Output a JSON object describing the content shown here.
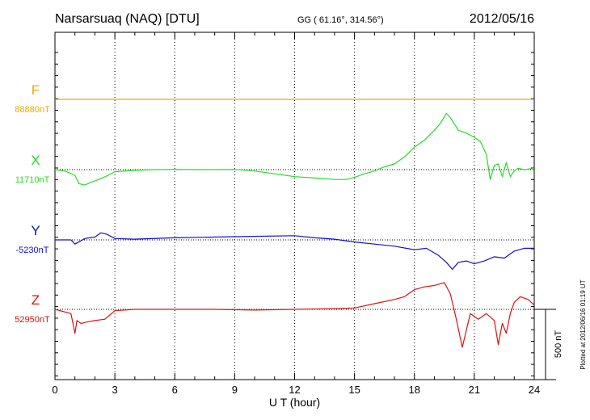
{
  "chart_data": {
    "type": "line",
    "title": "Narsarsuaq (NAQ)  [DTU]",
    "coords": "GG ( 61.16°, 314.56°)",
    "date": "2012/05/16",
    "xlabel": "U T (hour)",
    "xlim": [
      0,
      24
    ],
    "xticks": [
      "0",
      "3",
      "6",
      "9",
      "12",
      "15",
      "18",
      "21",
      "24"
    ],
    "scale_label": "500 nT",
    "plotted_note": "Plotted at 2012/06/16 01:19 UT",
    "grid": true,
    "series": [
      {
        "name": "F",
        "baseline_label": "88880nT",
        "color": "#f0a800",
        "x": [
          0,
          24
        ],
        "y": [
          88880,
          88880
        ]
      },
      {
        "name": "X",
        "baseline_label": "11710nT",
        "color": "#22dd22",
        "x": [
          0,
          0.5,
          1.0,
          1.2,
          1.5,
          1.8,
          2.2,
          2.6,
          3.0,
          4,
          5,
          6,
          7,
          8,
          9,
          10,
          11,
          12,
          13,
          14,
          14.6,
          15,
          15.5,
          16,
          16.5,
          17,
          17.5,
          18,
          18.5,
          19,
          19.3,
          19.6,
          19.8,
          20.2,
          20.6,
          21,
          21.3,
          21.6,
          21.8,
          22.0,
          22.2,
          22.4,
          22.6,
          22.8,
          23.0,
          23.2,
          23.5,
          24
        ],
        "y": [
          11710,
          11700,
          11670,
          11610,
          11600,
          11620,
          11640,
          11665,
          11695,
          11705,
          11710,
          11712,
          11710,
          11710,
          11712,
          11700,
          11680,
          11660,
          11650,
          11640,
          11640,
          11655,
          11680,
          11700,
          11730,
          11750,
          11800,
          11870,
          11920,
          11990,
          12040,
          12110,
          12080,
          11990,
          11970,
          11940,
          11910,
          11820,
          11640,
          11740,
          11750,
          11660,
          11760,
          11660,
          11700,
          11720,
          11710,
          11720
        ]
      },
      {
        "name": "Y",
        "baseline_label": "-5230nT",
        "color": "#1010d0",
        "x": [
          0,
          0.8,
          1.0,
          1.5,
          2.0,
          2.3,
          2.6,
          3.0,
          4,
          6,
          8,
          10,
          12,
          13,
          14,
          15,
          16,
          17,
          18,
          18.6,
          19.2,
          19.6,
          19.9,
          20.2,
          20.6,
          21,
          21.5,
          22,
          22.5,
          23,
          23.5,
          24
        ],
        "y": [
          -5230,
          -5230,
          -5260,
          -5220,
          -5210,
          -5180,
          -5190,
          -5220,
          -5225,
          -5215,
          -5210,
          -5205,
          -5200,
          -5215,
          -5225,
          -5245,
          -5260,
          -5275,
          -5300,
          -5290,
          -5340,
          -5390,
          -5440,
          -5390,
          -5380,
          -5400,
          -5380,
          -5350,
          -5360,
          -5310,
          -5290,
          -5290
        ]
      },
      {
        "name": "Z",
        "baseline_label": "52950nT",
        "color": "#e01010",
        "x": [
          0,
          0.8,
          1.0,
          1.1,
          1.3,
          1.6,
          2.0,
          2.5,
          3.0,
          4,
          6,
          8,
          10,
          12,
          14,
          15,
          16,
          17,
          17.5,
          18,
          18.5,
          19,
          19.5,
          19.8,
          20.1,
          20.4,
          20.8,
          21.2,
          21.6,
          22,
          22.2,
          22.4,
          22.6,
          22.8,
          23.0,
          23.3,
          23.7,
          24
        ],
        "y": [
          52950,
          52920,
          52780,
          52870,
          52850,
          52860,
          52870,
          52880,
          52940,
          52950,
          52950,
          52950,
          52945,
          52950,
          52955,
          52960,
          52990,
          53020,
          53040,
          53090,
          53110,
          53120,
          53140,
          53060,
          52880,
          52680,
          52920,
          52880,
          52920,
          52870,
          52700,
          52850,
          52780,
          52920,
          53000,
          53040,
          53020,
          52980
        ]
      }
    ]
  }
}
